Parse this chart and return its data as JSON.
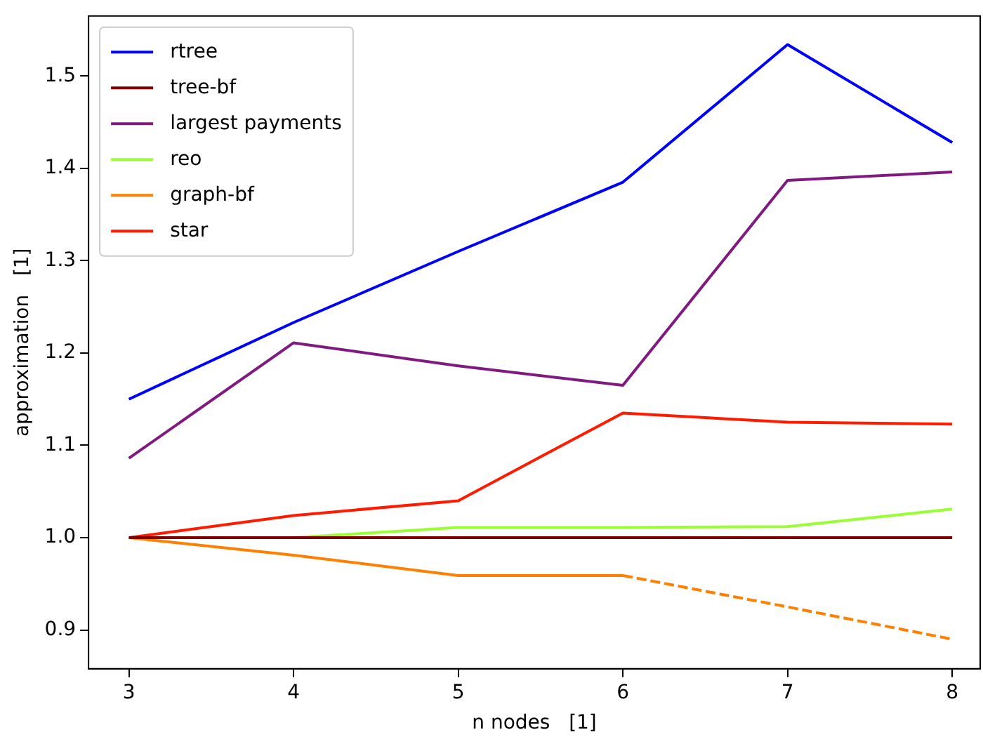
{
  "chart_data": {
    "type": "line",
    "xlabel": "n nodes   [1]",
    "ylabel": "approximation   [1]",
    "x": [
      3,
      4,
      5,
      6,
      7,
      8
    ],
    "xlim": [
      2.755,
      8.17
    ],
    "xticks": [
      3,
      4,
      5,
      6,
      7,
      8
    ],
    "ylim": [
      0.858,
      1.565
    ],
    "yticks": [
      0.9,
      {
        "value": 1.0,
        "label": "1.0"
      },
      1.1,
      1.2,
      1.3,
      1.4,
      1.5
    ],
    "grid": false,
    "legend": "top left",
    "marker": "none",
    "line_style": "solid",
    "series": [
      {
        "name": "rtree",
        "color": "#0000ff",
        "values": [
          1.15,
          1.233,
          1.31,
          1.385,
          1.534,
          1.428
        ]
      },
      {
        "name": "tree-bf",
        "color": "#800000",
        "values": [
          1.0,
          1.0,
          1.0,
          1.0,
          1.0,
          1.0
        ]
      },
      {
        "name": "largest payments",
        "color": "#801a80",
        "values": [
          1.086,
          1.211,
          1.186,
          1.165,
          1.387,
          1.396
        ]
      },
      {
        "name": "reo",
        "color": "#99ff33",
        "values": [
          1.0,
          1.0,
          1.011,
          1.011,
          1.012,
          1.031
        ]
      },
      {
        "name": "graph-bf",
        "color": "#ff8000",
        "values": [
          1.0,
          0.981,
          0.959,
          0.959,
          null,
          null
        ]
      },
      {
        "name": "star",
        "color": "#ff1a00",
        "values": [
          1.0,
          1.024,
          1.04,
          1.135,
          1.125,
          1.123
        ]
      },
      {
        "color": "#ff8000",
        "line_style": "dashed",
        "values": [
          null,
          null,
          null,
          0.959,
          0.925,
          0.89
        ]
      }
    ]
  }
}
